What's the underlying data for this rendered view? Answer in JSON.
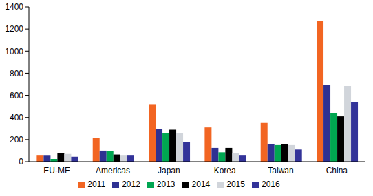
{
  "chart_data": {
    "type": "bar",
    "categories": [
      "EU-ME",
      "Americas",
      "Japan",
      "Korea",
      "Taiwan",
      "China"
    ],
    "series": [
      {
        "name": "2011",
        "color": "#f26522",
        "values": [
          55,
          215,
          520,
          310,
          350,
          1270
        ]
      },
      {
        "name": "2012",
        "color": "#2e3192",
        "values": [
          55,
          100,
          295,
          125,
          160,
          690
        ]
      },
      {
        "name": "2013",
        "color": "#00a651",
        "values": [
          25,
          95,
          260,
          85,
          150,
          440
        ]
      },
      {
        "name": "2014",
        "color": "#000000",
        "values": [
          75,
          65,
          290,
          125,
          160,
          410
        ]
      },
      {
        "name": "2015",
        "color": "#d1d5db",
        "values": [
          70,
          55,
          260,
          75,
          150,
          685
        ]
      },
      {
        "name": "2016",
        "color": "#333399",
        "values": [
          45,
          55,
          180,
          55,
          110,
          540
        ]
      }
    ],
    "ylim": [
      0,
      1400
    ],
    "yticks": [
      0,
      200,
      400,
      600,
      800,
      1000,
      1200,
      1400
    ],
    "grid": false,
    "legend": "bottom"
  }
}
